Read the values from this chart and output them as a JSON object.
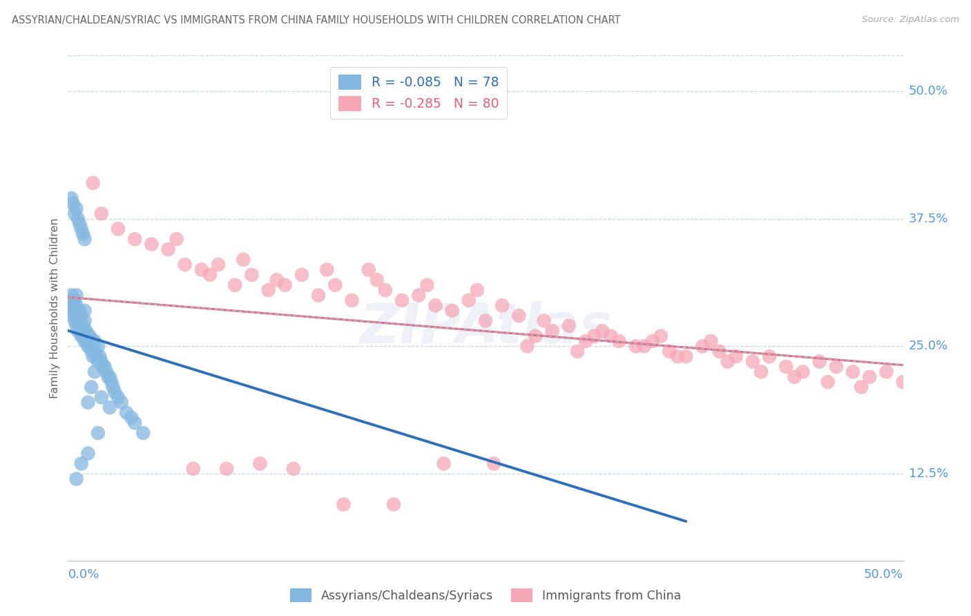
{
  "title": "ASSYRIAN/CHALDEAN/SYRIAC VS IMMIGRANTS FROM CHINA FAMILY HOUSEHOLDS WITH CHILDREN CORRELATION CHART",
  "source": "Source: ZipAtlas.com",
  "ylabel": "Family Households with Children",
  "color_blue": "#85b8e0",
  "color_pink": "#f5a8b8",
  "line_blue": "#2e6fba",
  "line_pink": "#e8607a",
  "line_gray": "#b0b8c8",
  "axis_label_color": "#5599dd",
  "title_color": "#666666",
  "grid_color": "#c8d4e8",
  "background_color": "#ffffff",
  "watermark": "ZIPAtlas",
  "R_blue": -0.085,
  "N_blue": 78,
  "R_pink": -0.285,
  "N_pink": 80,
  "xlim": [
    0.0,
    0.5
  ],
  "ylim": [
    0.04,
    0.535
  ],
  "ytick_vals": [
    0.125,
    0.25,
    0.375,
    0.5
  ],
  "ytick_labels": [
    "12.5%",
    "25.0%",
    "37.5%",
    "50.0%"
  ],
  "blue_x": [
    0.001,
    0.001,
    0.002,
    0.002,
    0.002,
    0.003,
    0.003,
    0.003,
    0.004,
    0.004,
    0.004,
    0.005,
    0.005,
    0.005,
    0.005,
    0.006,
    0.006,
    0.006,
    0.007,
    0.007,
    0.007,
    0.008,
    0.008,
    0.008,
    0.009,
    0.009,
    0.01,
    0.01,
    0.01,
    0.01,
    0.011,
    0.011,
    0.012,
    0.012,
    0.013,
    0.013,
    0.014,
    0.015,
    0.015,
    0.016,
    0.016,
    0.017,
    0.018,
    0.018,
    0.019,
    0.02,
    0.021,
    0.022,
    0.023,
    0.024,
    0.025,
    0.026,
    0.027,
    0.028,
    0.03,
    0.032,
    0.035,
    0.038,
    0.04,
    0.045,
    0.002,
    0.003,
    0.004,
    0.005,
    0.006,
    0.007,
    0.008,
    0.009,
    0.01,
    0.012,
    0.014,
    0.016,
    0.02,
    0.025,
    0.005,
    0.008,
    0.012,
    0.018
  ],
  "blue_y": [
    0.29,
    0.295,
    0.285,
    0.295,
    0.3,
    0.28,
    0.285,
    0.295,
    0.275,
    0.285,
    0.295,
    0.27,
    0.28,
    0.29,
    0.3,
    0.265,
    0.275,
    0.285,
    0.265,
    0.275,
    0.285,
    0.26,
    0.27,
    0.28,
    0.26,
    0.27,
    0.255,
    0.265,
    0.275,
    0.285,
    0.255,
    0.265,
    0.25,
    0.26,
    0.25,
    0.26,
    0.245,
    0.24,
    0.255,
    0.245,
    0.255,
    0.24,
    0.235,
    0.25,
    0.24,
    0.235,
    0.23,
    0.23,
    0.225,
    0.22,
    0.22,
    0.215,
    0.21,
    0.205,
    0.2,
    0.195,
    0.185,
    0.18,
    0.175,
    0.165,
    0.395,
    0.39,
    0.38,
    0.385,
    0.375,
    0.37,
    0.365,
    0.36,
    0.355,
    0.195,
    0.21,
    0.225,
    0.2,
    0.19,
    0.12,
    0.135,
    0.145,
    0.165
  ],
  "pink_x": [
    0.015,
    0.02,
    0.03,
    0.04,
    0.05,
    0.06,
    0.065,
    0.07,
    0.08,
    0.085,
    0.09,
    0.1,
    0.105,
    0.11,
    0.12,
    0.125,
    0.13,
    0.14,
    0.15,
    0.155,
    0.16,
    0.17,
    0.18,
    0.185,
    0.19,
    0.2,
    0.21,
    0.215,
    0.22,
    0.23,
    0.24,
    0.245,
    0.25,
    0.26,
    0.27,
    0.28,
    0.285,
    0.29,
    0.3,
    0.31,
    0.315,
    0.32,
    0.33,
    0.34,
    0.35,
    0.355,
    0.36,
    0.37,
    0.38,
    0.385,
    0.39,
    0.4,
    0.41,
    0.42,
    0.43,
    0.44,
    0.45,
    0.46,
    0.47,
    0.48,
    0.49,
    0.5,
    0.075,
    0.095,
    0.115,
    0.135,
    0.165,
    0.195,
    0.225,
    0.255,
    0.275,
    0.305,
    0.325,
    0.345,
    0.365,
    0.395,
    0.415,
    0.435,
    0.455,
    0.475
  ],
  "pink_y": [
    0.41,
    0.38,
    0.365,
    0.355,
    0.35,
    0.345,
    0.355,
    0.33,
    0.325,
    0.32,
    0.33,
    0.31,
    0.335,
    0.32,
    0.305,
    0.315,
    0.31,
    0.32,
    0.3,
    0.325,
    0.31,
    0.295,
    0.325,
    0.315,
    0.305,
    0.295,
    0.3,
    0.31,
    0.29,
    0.285,
    0.295,
    0.305,
    0.275,
    0.29,
    0.28,
    0.26,
    0.275,
    0.265,
    0.27,
    0.255,
    0.26,
    0.265,
    0.255,
    0.25,
    0.255,
    0.26,
    0.245,
    0.24,
    0.25,
    0.255,
    0.245,
    0.24,
    0.235,
    0.24,
    0.23,
    0.225,
    0.235,
    0.23,
    0.225,
    0.22,
    0.225,
    0.215,
    0.13,
    0.13,
    0.135,
    0.13,
    0.095,
    0.095,
    0.135,
    0.135,
    0.25,
    0.245,
    0.26,
    0.25,
    0.24,
    0.235,
    0.225,
    0.22,
    0.215,
    0.21
  ]
}
